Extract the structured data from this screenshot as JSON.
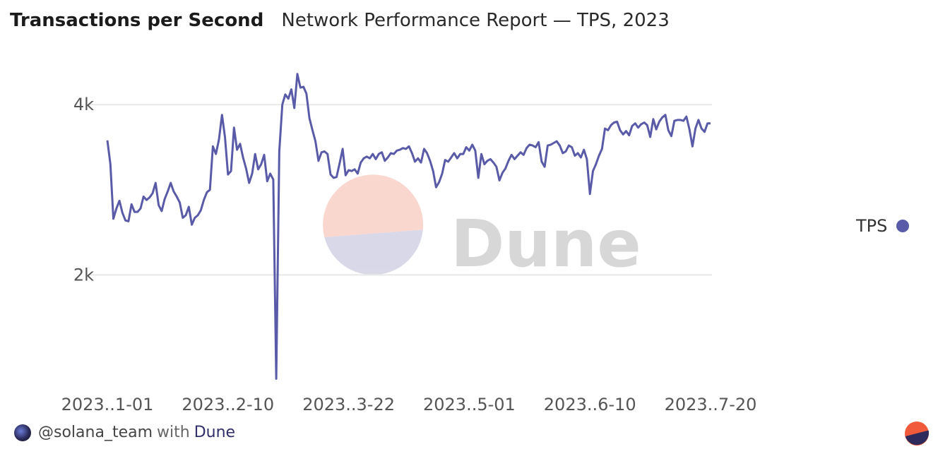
{
  "header": {
    "title": "Transactions per Second",
    "subtitle": "Network Performance Report — TPS, 2023"
  },
  "footer": {
    "handle": "@solana_team",
    "with_text": "with",
    "brand": "Dune"
  },
  "watermark": {
    "text": "Dune"
  },
  "legend": {
    "label": "TPS",
    "color": "#5a5ba8"
  },
  "colors": {
    "line": "#5a5ba8",
    "grid": "#e8e8e8",
    "logo_top": "#f5b8a9",
    "logo_bottom": "#b9b9d6"
  },
  "chart_data": {
    "type": "line",
    "title": "Transactions per Second",
    "subtitle": "Network Performance Report — TPS, 2023",
    "xlabel": "",
    "ylabel": "",
    "ylim": [
      750,
      4400
    ],
    "x_ticks": [
      "2023..1-01",
      "2023..2-10",
      "2023..3-22",
      "2023..5-01",
      "2023..6-10",
      "2023..7-20"
    ],
    "y_ticks": [
      {
        "value": 2000,
        "label": "2k"
      },
      {
        "value": 4000,
        "label": "4k"
      }
    ],
    "grid": true,
    "legend_position": "right",
    "series": [
      {
        "name": "TPS",
        "x_start": "2023-01-01",
        "x_step_days": 1,
        "values": [
          3580,
          3300,
          2660,
          2780,
          2870,
          2730,
          2640,
          2630,
          2830,
          2740,
          2740,
          2780,
          2920,
          2880,
          2910,
          2960,
          3080,
          2820,
          2750,
          2890,
          2980,
          3080,
          2980,
          2920,
          2850,
          2670,
          2700,
          2800,
          2590,
          2670,
          2700,
          2760,
          2880,
          2970,
          3000,
          3510,
          3420,
          3590,
          3880,
          3620,
          3180,
          3220,
          3730,
          3470,
          3540,
          3380,
          3250,
          3080,
          3190,
          3420,
          3240,
          3300,
          3410,
          3100,
          3190,
          3120,
          780,
          3450,
          4000,
          4120,
          4070,
          4180,
          3960,
          4360,
          4200,
          4210,
          4130,
          3840,
          3700,
          3570,
          3340,
          3440,
          3450,
          3420,
          3180,
          3140,
          3150,
          3310,
          3480,
          3170,
          3230,
          3220,
          3240,
          3190,
          3320,
          3370,
          3390,
          3370,
          3420,
          3360,
          3420,
          3440,
          3340,
          3380,
          3430,
          3420,
          3460,
          3470,
          3490,
          3480,
          3510,
          3430,
          3330,
          3370,
          3320,
          3480,
          3430,
          3340,
          3220,
          3030,
          3090,
          3190,
          3350,
          3330,
          3380,
          3430,
          3370,
          3420,
          3420,
          3500,
          3460,
          3530,
          3460,
          3140,
          3420,
          3300,
          3340,
          3360,
          3320,
          3270,
          3110,
          3200,
          3250,
          3340,
          3410,
          3360,
          3400,
          3440,
          3410,
          3490,
          3530,
          3520,
          3500,
          3560,
          3330,
          3270,
          3520,
          3530,
          3550,
          3570,
          3520,
          3430,
          3450,
          3520,
          3500,
          3400,
          3430,
          3380,
          3470,
          3360,
          2950,
          3220,
          3300,
          3400,
          3480,
          3720,
          3700,
          3760,
          3790,
          3800,
          3700,
          3650,
          3690,
          3640,
          3750,
          3780,
          3730,
          3770,
          3790,
          3760,
          3620,
          3830,
          3710,
          3800,
          3850,
          3880,
          3700,
          3630,
          3810,
          3820,
          3820,
          3810,
          3860,
          3710,
          3510,
          3720,
          3820,
          3720,
          3680,
          3780,
          3780
        ]
      }
    ]
  }
}
